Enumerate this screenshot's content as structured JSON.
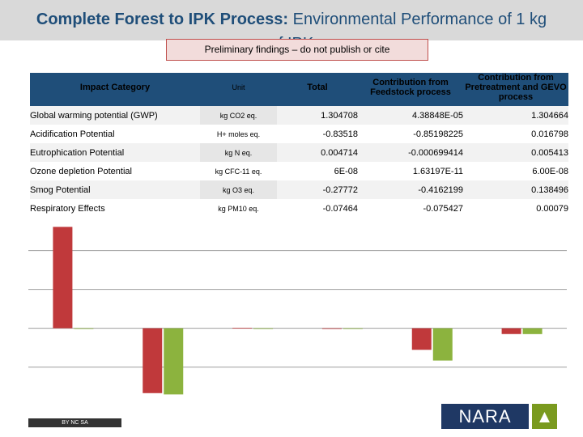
{
  "title": {
    "bold": "Complete Forest to IPK Process:",
    "rest": " Environmental Performance of 1 kg",
    "overflow": "of IPK"
  },
  "banner": "Preliminary findings – do not publish or cite",
  "table": {
    "headers": [
      "Impact Category",
      "Unit",
      "Total",
      "Contribution from Feedstock process",
      "Contribution from Pretreatment and GEVO process"
    ],
    "rows": [
      [
        "Global warming potential (GWP)",
        "kg CO2 eq.",
        "1.304708",
        "4.38848E-05",
        "1.304664"
      ],
      [
        "Acidification Potential",
        "H+ moles eq.",
        "-0.83518",
        "-0.85198225",
        "0.016798"
      ],
      [
        "Eutrophication Potential",
        "kg N eq.",
        "0.004714",
        "-0.000699414",
        "0.005413"
      ],
      [
        "Ozone depletion Potential",
        "kg CFC-11 eq.",
        "6E-08",
        "1.63197E-11",
        "6.00E-08"
      ],
      [
        "Smog Potential",
        "kg O3 eq.",
        "-0.27772",
        "-0.4162199",
        "0.138496"
      ],
      [
        "Respiratory Effects",
        "kg PM10 eq.",
        "-0.07464",
        "-0.075427",
        "0.00079"
      ]
    ]
  },
  "chart_data": {
    "type": "bar",
    "categories": [
      "Global warming potential (GWP)",
      "Acidification Potential",
      "Eutrophication Potential",
      "Ozone depletion Potential",
      "Smog Potential",
      "Respiratory Effects"
    ],
    "series": [
      {
        "name": "",
        "color": "#c0393b",
        "values": [
          1.304708,
          -0.83518,
          0.004714,
          6e-08,
          -0.27772,
          -0.07464
        ]
      },
      {
        "name": "",
        "color": "#8cb33e",
        "values": [
          4.38848e-05,
          -0.85198225,
          -0.000699414,
          1.63197e-11,
          -0.4162199,
          -0.075427
        ]
      }
    ],
    "ylim": [
      -0.9,
      1.35
    ],
    "grid": true,
    "title": "",
    "xlabel": "",
    "ylabel": ""
  },
  "footer": {
    "license": "BY NC SA",
    "logo": "NARA",
    "logo_icon": "tree-icon"
  }
}
